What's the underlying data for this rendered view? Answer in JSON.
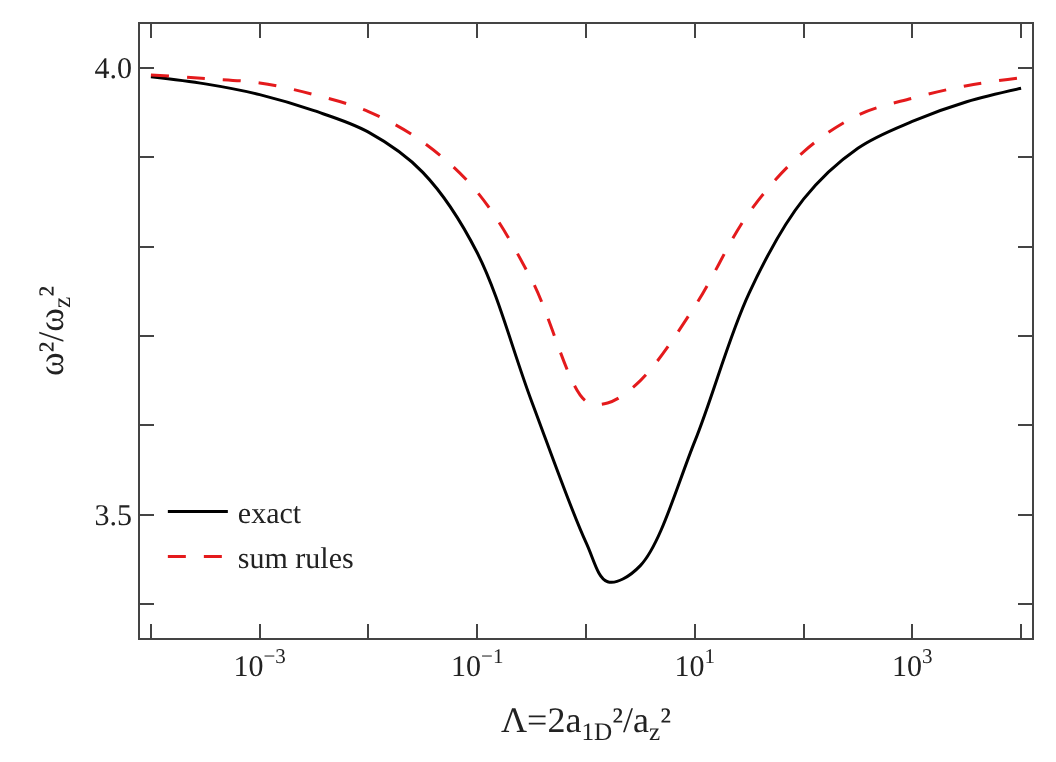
{
  "chart_data": {
    "type": "line",
    "xlabel": "Λ=2a$_{1D}$²/a$_{z}$²",
    "ylabel": "ω²/ω$_{z}$²",
    "x": [
      0.0001,
      0.000316,
      0.001,
      0.00316,
      0.01,
      0.0316,
      0.1,
      0.316,
      1,
      1.58,
      3.16,
      10,
      31.6,
      100,
      316,
      1000,
      3162,
      10000
    ],
    "series": [
      {
        "name": "exact",
        "color": "#000000",
        "line_style": "solid",
        "values": [
          3.99,
          3.982,
          3.97,
          3.952,
          3.928,
          3.883,
          3.793,
          3.627,
          3.469,
          3.425,
          3.443,
          3.582,
          3.748,
          3.853,
          3.91,
          3.94,
          3.962,
          3.977
        ]
      },
      {
        "name": "sum rules",
        "color": "#e41a1c",
        "line_style": "dashed",
        "values": [
          3.992,
          3.988,
          3.983,
          3.97,
          3.951,
          3.917,
          3.861,
          3.763,
          3.627,
          3.625,
          3.65,
          3.733,
          3.838,
          3.906,
          3.947,
          3.966,
          3.98,
          3.989
        ]
      }
    ],
    "log": "x",
    "xlim": [
      7.94e-05,
      12600
    ],
    "ylim": [
      3.362,
      4.049
    ],
    "xticks": [
      {
        "value": 0.0001,
        "label": null
      },
      {
        "value": 0.001,
        "label": "10$^{−3}$"
      },
      {
        "value": 0.01,
        "label": null
      },
      {
        "value": 0.1,
        "label": "10$^{−1}$"
      },
      {
        "value": 1,
        "label": null
      },
      {
        "value": 10,
        "label": "10$^{1}$"
      },
      {
        "value": 100,
        "label": null
      },
      {
        "value": 1000,
        "label": "10$^{3}$"
      },
      {
        "value": 10000,
        "label": null
      }
    ],
    "yticks": [
      {
        "value": 3.4,
        "label": null
      },
      {
        "value": 3.5,
        "label": "3.5"
      },
      {
        "value": 3.6,
        "label": null
      },
      {
        "value": 3.7,
        "label": null
      },
      {
        "value": 3.8,
        "label": null
      },
      {
        "value": 3.9,
        "label": null
      },
      {
        "value": 4.0,
        "label": "4.0"
      }
    ],
    "grid": false,
    "legend": "bottom left"
  }
}
